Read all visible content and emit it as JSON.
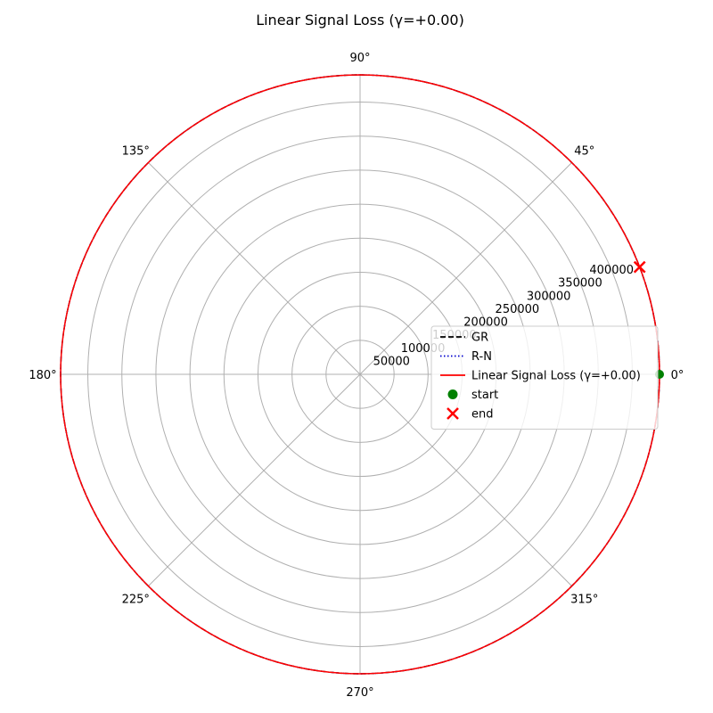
{
  "chart_data": {
    "type": "polar-line",
    "title": "Linear Signal Loss (γ=+0.00)",
    "theta_ticks": [
      {
        "deg": 0,
        "label": "0°"
      },
      {
        "deg": 45,
        "label": "45°"
      },
      {
        "deg": 90,
        "label": "90°"
      },
      {
        "deg": 135,
        "label": "135°"
      },
      {
        "deg": 180,
        "label": "180°"
      },
      {
        "deg": 225,
        "label": "225°"
      },
      {
        "deg": 270,
        "label": "270°"
      },
      {
        "deg": 315,
        "label": "315°"
      }
    ],
    "r_ticks": [
      {
        "value": 50000,
        "label": "50000"
      },
      {
        "value": 100000,
        "label": "100000"
      },
      {
        "value": 150000,
        "label": "150000"
      },
      {
        "value": 200000,
        "label": "200000"
      },
      {
        "value": 250000,
        "label": "250000"
      },
      {
        "value": 300000,
        "label": "300000"
      },
      {
        "value": 350000,
        "label": "350000"
      },
      {
        "value": 400000,
        "label": "400000"
      }
    ],
    "rlim": [
      0,
      440000
    ],
    "r_tick_angle_deg": 22.5,
    "grid": true,
    "legend_position": "right",
    "series": [
      {
        "name": "GR",
        "style": "dashed",
        "color": "#000000",
        "r_start": 440000,
        "r_end": 440000,
        "theta_start_deg": 0,
        "theta_end_deg": 360
      },
      {
        "name": "R-N",
        "style": "dotted",
        "color": "#0000cc",
        "r_start": 440000,
        "r_end": 440000,
        "theta_start_deg": 0,
        "theta_end_deg": 360
      },
      {
        "name": "Linear Signal Loss (γ=+0.00)",
        "style": "solid",
        "color": "#ff0000",
        "r_start": 440000,
        "r_end": 440000,
        "theta_start_deg": 0,
        "theta_end_deg": 360
      }
    ],
    "markers": [
      {
        "name": "start",
        "shape": "circle",
        "color": "#008000",
        "r": 440000,
        "theta_deg": 0
      },
      {
        "name": "end",
        "shape": "x",
        "color": "#ff0000",
        "r": 440000,
        "theta_deg": 21
      }
    ]
  }
}
